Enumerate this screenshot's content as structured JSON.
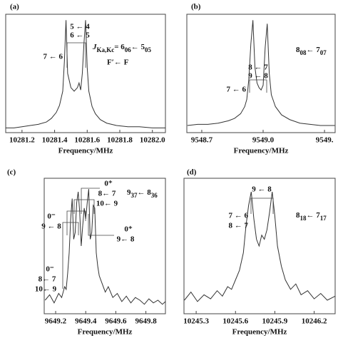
{
  "chart_data": [
    {
      "type": "line",
      "panel_label": "(a)",
      "xlabel": "Frequency/MHz",
      "color": "#333333",
      "xlim": [
        10281.1,
        10282.08
      ],
      "ylim": [
        0,
        1
      ],
      "xticks": [
        10281.2,
        10281.4,
        10281.6,
        10281.8,
        {
          "value": 10282,
          "label": "10282.0"
        }
      ],
      "x": [
        10281.1,
        10281.15,
        10281.2,
        10281.25,
        10281.3,
        10281.35,
        10281.38,
        10281.41,
        10281.43,
        10281.45,
        10281.46,
        10281.47,
        10281.48,
        10281.5,
        10281.52,
        10281.54,
        10281.55,
        10281.56,
        10281.57,
        10281.58,
        10281.59,
        10281.6,
        10281.61,
        10281.63,
        10281.65,
        10281.68,
        10281.72,
        10281.78,
        10281.85,
        10281.92,
        10282.0,
        10282.08
      ],
      "values": [
        0.04,
        0.04,
        0.05,
        0.06,
        0.07,
        0.09,
        0.12,
        0.17,
        0.23,
        0.35,
        0.6,
        0.95,
        0.5,
        0.38,
        0.35,
        0.38,
        0.42,
        0.36,
        0.5,
        0.75,
        0.95,
        0.55,
        0.35,
        0.22,
        0.16,
        0.11,
        0.08,
        0.06,
        0.05,
        0.05,
        0.04,
        0.04
      ],
      "annotations": [
        "5 ← 4",
        "6 ← 5",
        "7 ← 6",
        "F′← F"
      ],
      "quantum_label": [
        {
          "text": "J"
        },
        {
          "text": "Ka,Kc",
          "sub": true
        },
        {
          "text": "= 6"
        },
        {
          "text": "06",
          "sub": true
        },
        {
          "text": "← 5"
        },
        {
          "text": "05",
          "sub": true
        }
      ]
    },
    {
      "type": "line",
      "panel_label": "(b)",
      "xlabel": "Frequency/MHz",
      "color": "#333333",
      "xlim": [
        9548.627,
        9549.352
      ],
      "ylim": [
        0,
        1
      ],
      "xticks": [
        9548.7,
        {
          "value": 9549,
          "label": "9549.0"
        },
        {
          "value": 9549.3,
          "label": "9549."
        }
      ],
      "x": [
        9548.63,
        9548.68,
        9548.73,
        9548.78,
        9548.83,
        9548.86,
        9548.89,
        9548.91,
        9548.92,
        9548.93,
        9548.94,
        9548.95,
        9548.96,
        9548.97,
        9548.98,
        9548.99,
        9549.0,
        9549.01,
        9549.02,
        9549.03,
        9549.04,
        9549.06,
        9549.09,
        9549.13,
        9549.18,
        9549.23,
        9549.28,
        9549.33,
        9549.35
      ],
      "values": [
        0.06,
        0.07,
        0.07,
        0.08,
        0.1,
        0.12,
        0.16,
        0.22,
        0.28,
        0.45,
        0.75,
        0.95,
        0.55,
        0.42,
        0.38,
        0.36,
        0.4,
        0.72,
        0.92,
        0.5,
        0.32,
        0.22,
        0.15,
        0.11,
        0.08,
        0.07,
        0.06,
        0.06,
        0.06
      ],
      "annotations": [
        "8 ← 7",
        "9 ← 8",
        "7 ← 6"
      ],
      "quantum_label": [
        {
          "text": "8"
        },
        {
          "text": "08",
          "sub": true
        },
        {
          "text": "← 7"
        },
        {
          "text": "07",
          "sub": true
        }
      ]
    },
    {
      "type": "line",
      "panel_label": "(c)",
      "xlabel": "Frequency/MHz",
      "color": "#333333",
      "xlim": [
        9649.124,
        9649.93
      ],
      "ylim": [
        0,
        1
      ],
      "xticks": [
        9649.2,
        9649.4,
        9649.6,
        9649.8
      ],
      "x": [
        9649.13,
        9649.16,
        9649.19,
        9649.22,
        9649.24,
        9649.26,
        9649.27,
        9649.28,
        9649.29,
        9649.3,
        9649.31,
        9649.32,
        9649.33,
        9649.34,
        9649.35,
        9649.36,
        9649.37,
        9649.38,
        9649.39,
        9649.4,
        9649.41,
        9649.42,
        9649.43,
        9649.44,
        9649.45,
        9649.46,
        9649.47,
        9649.48,
        9649.49,
        9649.51,
        9649.53,
        9649.55,
        9649.58,
        9649.61,
        9649.64,
        9649.67,
        9649.7,
        9649.73,
        9649.76,
        9649.79,
        9649.82,
        9649.85,
        9649.88,
        9649.91,
        9649.93
      ],
      "values": [
        0.1,
        0.14,
        0.08,
        0.15,
        0.12,
        0.2,
        0.18,
        0.3,
        0.45,
        0.7,
        0.85,
        0.55,
        0.6,
        0.82,
        0.9,
        0.75,
        0.5,
        0.65,
        0.78,
        0.7,
        0.82,
        0.92,
        0.55,
        0.6,
        0.8,
        0.78,
        0.45,
        0.35,
        0.28,
        0.22,
        0.16,
        0.2,
        0.12,
        0.15,
        0.09,
        0.13,
        0.08,
        0.12,
        0.1,
        0.07,
        0.11,
        0.08,
        0.1,
        0.07,
        0.09
      ],
      "annotations": [
        "0⁺",
        "8← 7",
        "10← 9",
        "0⁻",
        "9 ← 8",
        "0⁺",
        "9← 8",
        "0⁻",
        "8← 7",
        "10← 9"
      ],
      "quantum_label": [
        {
          "text": "9"
        },
        {
          "text": "37",
          "sub": true
        },
        {
          "text": "← 8"
        },
        {
          "text": "36",
          "sub": true
        }
      ]
    },
    {
      "type": "line",
      "panel_label": "(d)",
      "xlabel": "Frequency/MHz",
      "color": "#333333",
      "xlim": [
        10245.207,
        10246.36
      ],
      "ylim": [
        0,
        1
      ],
      "xticks": [
        10245.3,
        10245.6,
        10245.9,
        10246.2
      ],
      "x": [
        10245.21,
        10245.26,
        10245.31,
        10245.36,
        10245.41,
        10245.46,
        10245.5,
        10245.54,
        10245.57,
        10245.6,
        10245.63,
        10245.66,
        10245.68,
        10245.7,
        10245.72,
        10245.74,
        10245.76,
        10245.78,
        10245.8,
        10245.82,
        10245.84,
        10245.86,
        10245.88,
        10245.9,
        10245.92,
        10245.95,
        10245.98,
        10246.02,
        10246.06,
        10246.1,
        10246.15,
        10246.2,
        10246.25,
        10246.3,
        10246.36
      ],
      "values": [
        0.1,
        0.16,
        0.09,
        0.14,
        0.11,
        0.17,
        0.13,
        0.2,
        0.18,
        0.25,
        0.32,
        0.45,
        0.65,
        0.8,
        0.9,
        0.7,
        0.55,
        0.5,
        0.58,
        0.55,
        0.62,
        0.75,
        0.9,
        0.72,
        0.5,
        0.35,
        0.25,
        0.18,
        0.22,
        0.14,
        0.17,
        0.11,
        0.15,
        0.1,
        0.13
      ],
      "annotations": [
        "9 ← 8",
        "7 ← 6",
        "8 ← 7"
      ],
      "quantum_label": [
        {
          "text": "8"
        },
        {
          "text": "18",
          "sub": true
        },
        {
          "text": "← 7"
        },
        {
          "text": "17",
          "sub": true
        }
      ]
    }
  ]
}
